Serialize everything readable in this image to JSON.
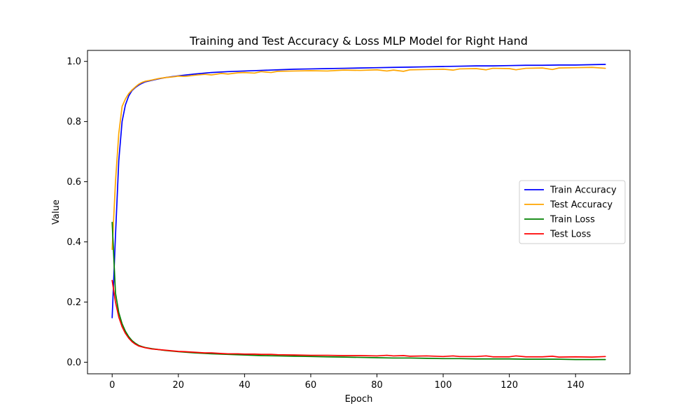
{
  "chart_data": {
    "type": "line",
    "title": "Training and Test Accuracy & Loss MLP Model for Right Hand",
    "xlabel": "Epoch",
    "ylabel": "Value",
    "xlim": [
      -7.45,
      156.45
    ],
    "ylim": [
      -0.0385,
      1.0365
    ],
    "xticks": [
      0,
      20,
      40,
      60,
      80,
      100,
      120,
      140
    ],
    "yticks": [
      0.0,
      0.2,
      0.4,
      0.6,
      0.8,
      1.0
    ],
    "xtick_labels": [
      "0",
      "20",
      "40",
      "60",
      "80",
      "100",
      "120",
      "140"
    ],
    "ytick_labels": [
      "0.0",
      "0.2",
      "0.4",
      "0.6",
      "0.8",
      "1.0"
    ],
    "grid": false,
    "legend_position": "center-right",
    "series": [
      {
        "name": "Train Accuracy",
        "color": "#0000ff",
        "x": [
          0,
          1,
          2,
          3,
          4,
          5,
          6,
          7,
          8,
          9,
          10,
          12,
          14,
          16,
          18,
          20,
          25,
          30,
          35,
          40,
          45,
          50,
          55,
          60,
          65,
          70,
          75,
          80,
          85,
          90,
          95,
          100,
          105,
          110,
          115,
          120,
          125,
          130,
          135,
          140,
          145,
          149
        ],
        "y": [
          0.148,
          0.42,
          0.67,
          0.8,
          0.855,
          0.885,
          0.903,
          0.913,
          0.921,
          0.927,
          0.932,
          0.937,
          0.942,
          0.946,
          0.949,
          0.952,
          0.958,
          0.963,
          0.966,
          0.968,
          0.97,
          0.972,
          0.974,
          0.975,
          0.976,
          0.977,
          0.978,
          0.979,
          0.98,
          0.981,
          0.982,
          0.983,
          0.984,
          0.985,
          0.985,
          0.986,
          0.987,
          0.987,
          0.988,
          0.988,
          0.989,
          0.99
        ]
      },
      {
        "name": "Test Accuracy",
        "color": "#ffa500",
        "x": [
          0,
          1,
          2,
          3,
          4,
          5,
          6,
          7,
          8,
          9,
          10,
          12,
          14,
          16,
          18,
          20,
          22,
          25,
          28,
          30,
          33,
          35,
          38,
          40,
          43,
          45,
          48,
          50,
          55,
          60,
          65,
          70,
          75,
          80,
          83,
          85,
          88,
          90,
          95,
          100,
          103,
          105,
          110,
          113,
          115,
          120,
          122,
          125,
          130,
          133,
          135,
          140,
          145,
          149
        ],
        "y": [
          0.375,
          0.6,
          0.76,
          0.85,
          0.875,
          0.893,
          0.905,
          0.915,
          0.924,
          0.93,
          0.934,
          0.938,
          0.943,
          0.946,
          0.948,
          0.951,
          0.95,
          0.954,
          0.957,
          0.955,
          0.96,
          0.958,
          0.962,
          0.963,
          0.961,
          0.966,
          0.963,
          0.967,
          0.968,
          0.969,
          0.968,
          0.971,
          0.97,
          0.972,
          0.968,
          0.971,
          0.967,
          0.972,
          0.973,
          0.974,
          0.971,
          0.975,
          0.976,
          0.972,
          0.977,
          0.976,
          0.972,
          0.977,
          0.978,
          0.973,
          0.978,
          0.979,
          0.98,
          0.977
        ]
      },
      {
        "name": "Train Loss",
        "color": "#008000",
        "x": [
          0,
          1,
          2,
          3,
          4,
          5,
          6,
          7,
          8,
          9,
          10,
          12,
          14,
          16,
          18,
          20,
          25,
          30,
          35,
          40,
          45,
          50,
          55,
          60,
          65,
          70,
          75,
          80,
          85,
          90,
          95,
          100,
          105,
          110,
          115,
          120,
          125,
          130,
          135,
          140,
          145,
          149
        ],
        "y": [
          0.465,
          0.23,
          0.165,
          0.128,
          0.103,
          0.085,
          0.072,
          0.063,
          0.056,
          0.052,
          0.049,
          0.045,
          0.042,
          0.039,
          0.037,
          0.035,
          0.031,
          0.028,
          0.026,
          0.024,
          0.022,
          0.021,
          0.02,
          0.019,
          0.018,
          0.017,
          0.016,
          0.015,
          0.014,
          0.014,
          0.013,
          0.012,
          0.012,
          0.011,
          0.011,
          0.011,
          0.01,
          0.01,
          0.01,
          0.009,
          0.009,
          0.009
        ]
      },
      {
        "name": "Test Loss",
        "color": "#ff0000",
        "x": [
          0,
          1,
          2,
          3,
          4,
          5,
          6,
          7,
          8,
          9,
          10,
          12,
          14,
          16,
          18,
          20,
          22,
          25,
          28,
          30,
          33,
          35,
          38,
          40,
          43,
          45,
          48,
          50,
          55,
          60,
          65,
          70,
          75,
          80,
          83,
          85,
          88,
          90,
          95,
          100,
          103,
          105,
          110,
          113,
          115,
          120,
          122,
          125,
          130,
          133,
          135,
          140,
          145,
          149
        ],
        "y": [
          0.272,
          0.2,
          0.15,
          0.118,
          0.096,
          0.08,
          0.068,
          0.06,
          0.054,
          0.051,
          0.048,
          0.044,
          0.042,
          0.04,
          0.038,
          0.036,
          0.035,
          0.033,
          0.031,
          0.031,
          0.029,
          0.028,
          0.028,
          0.027,
          0.027,
          0.026,
          0.026,
          0.025,
          0.024,
          0.023,
          0.023,
          0.022,
          0.022,
          0.021,
          0.023,
          0.021,
          0.022,
          0.02,
          0.021,
          0.019,
          0.021,
          0.019,
          0.019,
          0.021,
          0.018,
          0.018,
          0.021,
          0.018,
          0.018,
          0.02,
          0.017,
          0.018,
          0.017,
          0.019
        ]
      }
    ]
  }
}
